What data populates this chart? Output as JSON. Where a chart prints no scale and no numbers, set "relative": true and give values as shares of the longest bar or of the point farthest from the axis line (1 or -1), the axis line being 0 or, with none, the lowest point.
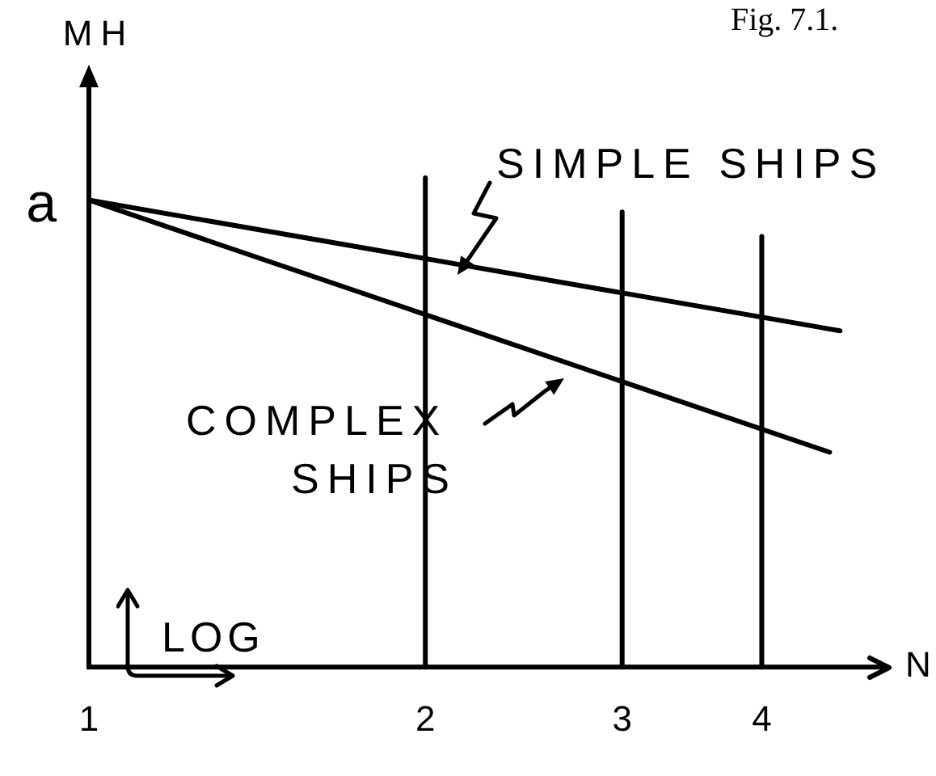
{
  "chart_data": {
    "type": "line",
    "xlabel": "N",
    "ylabel": "MH",
    "relative": true,
    "log": "x",
    "xlim": [
      1,
      5.2
    ],
    "xticks": [
      1,
      2,
      3,
      4
    ],
    "tick_labels": "x",
    "series": [
      {
        "name": "SIMPLE SHIPS",
        "color": "#000000",
        "x": [
          1,
          4.7
        ],
        "values": [
          1,
          0.72
        ]
      },
      {
        "name": "COMPLEX SHIPS",
        "color": "#000000",
        "x": [
          1,
          4.6
        ],
        "values": [
          1,
          0.46
        ]
      }
    ],
    "ref_lines": [
      {
        "axis": "x",
        "value": 2
      },
      {
        "axis": "x",
        "value": 3
      },
      {
        "axis": "x",
        "value": 4
      }
    ],
    "annotations": [
      "Fig. 7.1.",
      {
        "text": "a",
        "x": 1,
        "y": 1
      },
      "LOG"
    ]
  }
}
